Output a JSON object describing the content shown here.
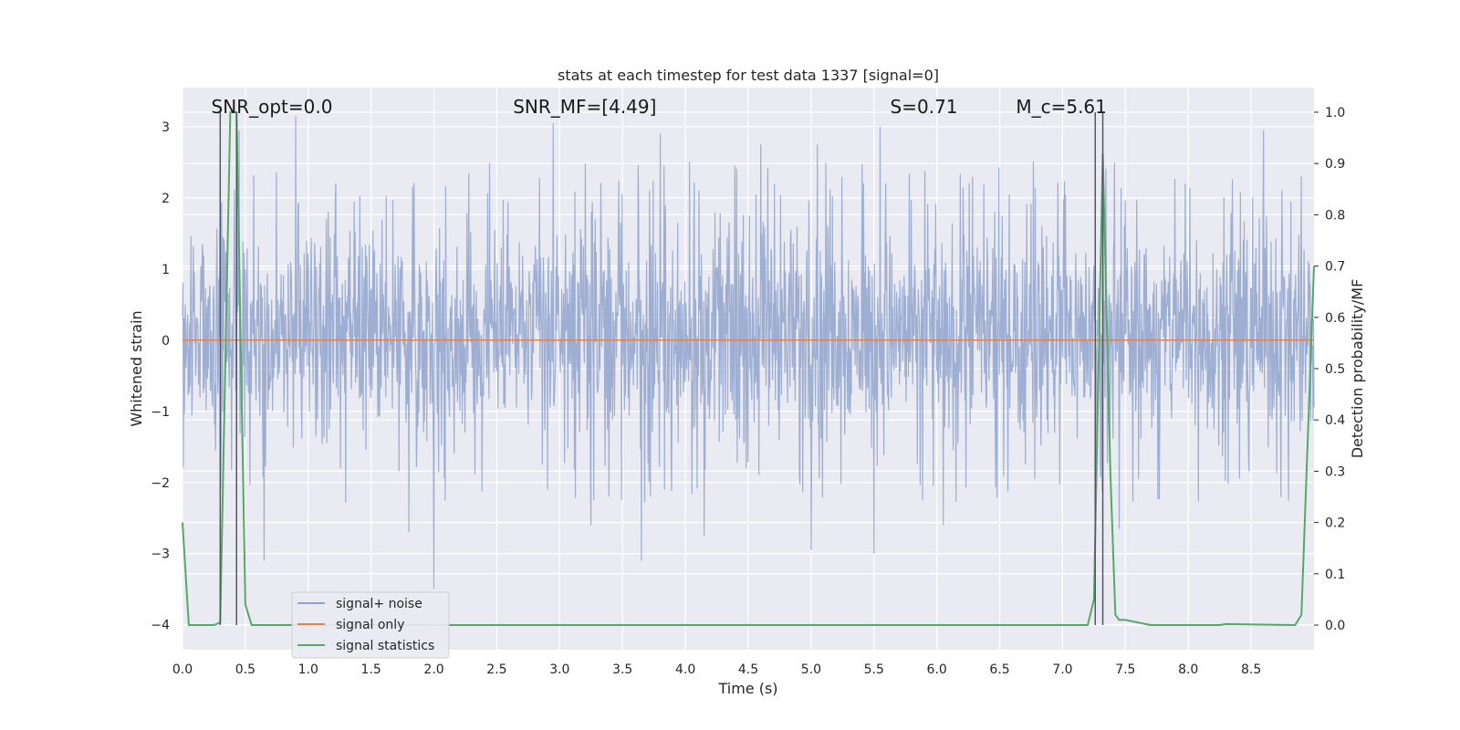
{
  "chart_data": {
    "type": "line",
    "title": "stats at each timestep for test data 1337 [signal=0]",
    "xlabel": "Time (s)",
    "ylabel": "Whitened strain",
    "y2label": "Detection probability/MF",
    "xlim": [
      0.0,
      9.0
    ],
    "ylim": [
      -4.35,
      3.55
    ],
    "y2lim": [
      -0.048,
      1.048
    ],
    "xticks": [
      "0.0",
      "0.5",
      "1.0",
      "1.5",
      "2.0",
      "2.5",
      "3.0",
      "3.5",
      "4.0",
      "4.5",
      "5.0",
      "5.5",
      "6.0",
      "6.5",
      "7.0",
      "7.5",
      "8.0",
      "8.5"
    ],
    "yticks": [
      "−4",
      "−3",
      "−2",
      "−1",
      "0",
      "1",
      "2",
      "3"
    ],
    "y2ticks": [
      "0.0",
      "0.1",
      "0.2",
      "0.3",
      "0.4",
      "0.5",
      "0.6",
      "0.7",
      "0.8",
      "0.9",
      "1.0"
    ],
    "grid": true,
    "legend_position": "lower-left",
    "annotations": [
      {
        "text": "SNR_opt=0.0",
        "x": 0.2
      },
      {
        "text": "SNR_MF=[4.49]",
        "x": 2.6
      },
      {
        "text": "S=0.71",
        "x": 5.6
      },
      {
        "text": "M_c=5.61",
        "x": 6.6
      }
    ],
    "vlines": [
      0.3,
      0.43,
      7.26,
      7.32
    ],
    "series": [
      {
        "name": "signal+ noise",
        "color": "#8fa3cc",
        "axis": "left",
        "kind": "noise",
        "base_min": -1.9,
        "base_max": 2.1,
        "spikes": [
          {
            "x": 0.3,
            "y": 2.65
          },
          {
            "x": 0.45,
            "y": 2.95
          },
          {
            "x": 0.65,
            "y": -3.1
          },
          {
            "x": 0.9,
            "y": 3.15
          },
          {
            "x": 2.0,
            "y": -3.5
          },
          {
            "x": 1.8,
            "y": -2.7
          },
          {
            "x": 2.95,
            "y": 3.05
          },
          {
            "x": 3.25,
            "y": -2.6
          },
          {
            "x": 3.65,
            "y": -3.1
          },
          {
            "x": 3.8,
            "y": 2.9
          },
          {
            "x": 4.15,
            "y": -2.75
          },
          {
            "x": 4.6,
            "y": 2.75
          },
          {
            "x": 5.0,
            "y": -2.95
          },
          {
            "x": 5.05,
            "y": 2.75
          },
          {
            "x": 5.5,
            "y": -3.0
          },
          {
            "x": 5.55,
            "y": 3.0
          },
          {
            "x": 6.05,
            "y": -2.6
          },
          {
            "x": 7.45,
            "y": -2.65
          },
          {
            "x": 8.6,
            "y": 2.95
          },
          {
            "x": 8.9,
            "y": 2.3
          }
        ]
      },
      {
        "name": "signal only",
        "color": "#dd8452",
        "axis": "left",
        "x": [
          0.0,
          9.0
        ],
        "y": [
          0.0,
          0.0
        ]
      },
      {
        "name": "signal statistics",
        "color": "#55a868",
        "axis": "right",
        "x": [
          0.0,
          0.05,
          0.25,
          0.3,
          0.38,
          0.43,
          0.5,
          0.55,
          7.2,
          7.25,
          7.32,
          7.38,
          7.42,
          7.45,
          7.5,
          7.7,
          8.25,
          8.3,
          8.85,
          8.9,
          9.0
        ],
        "y": [
          0.2,
          0.0,
          0.0,
          0.005,
          1.0,
          1.0,
          0.04,
          0.0,
          0.0,
          0.05,
          0.92,
          0.3,
          0.02,
          0.01,
          0.01,
          0.0,
          0.0,
          0.002,
          0.0,
          0.02,
          0.7
        ]
      }
    ]
  }
}
